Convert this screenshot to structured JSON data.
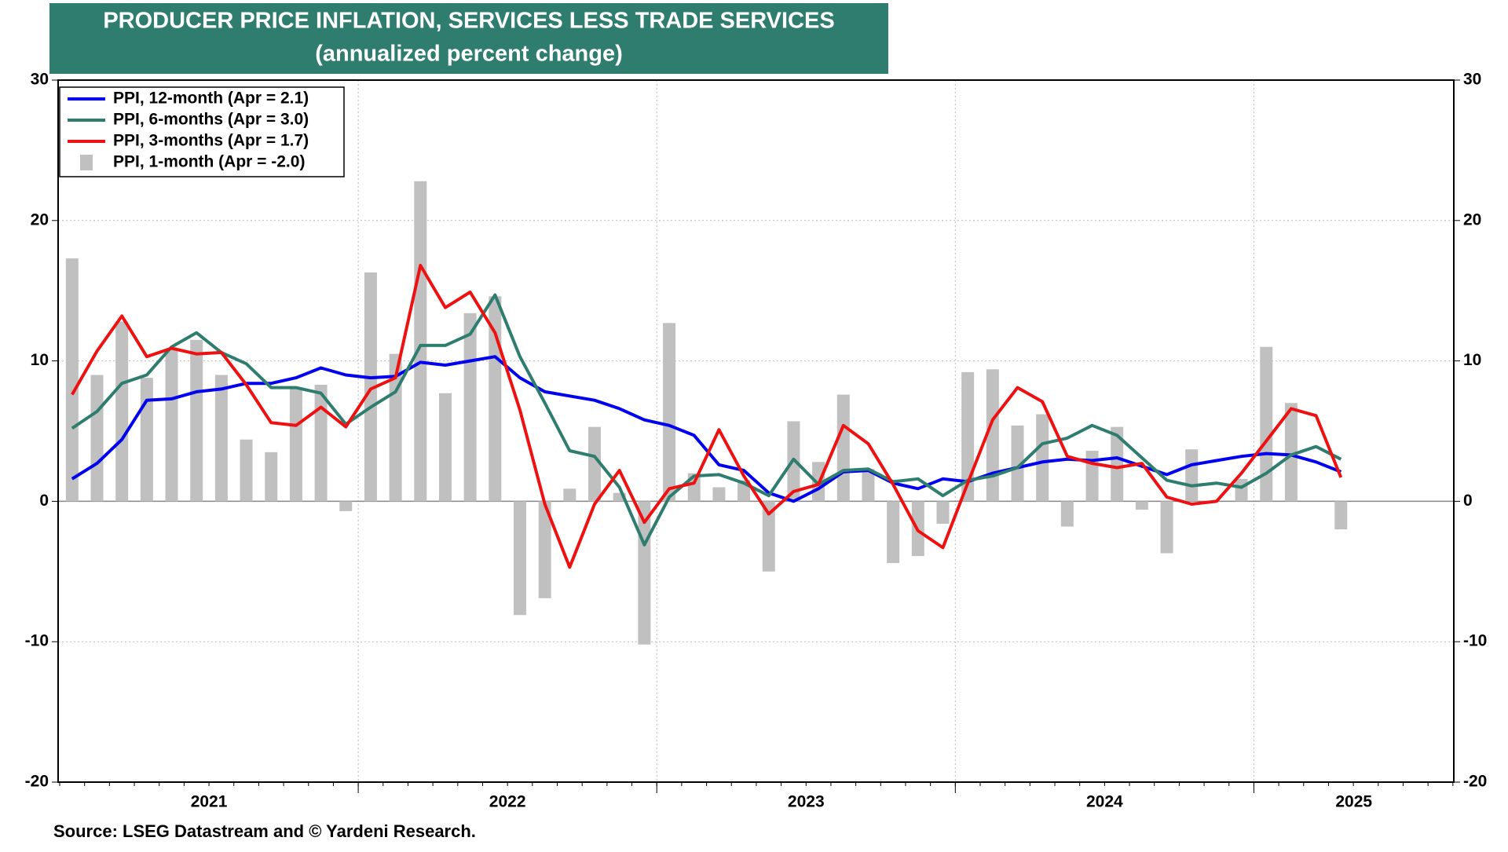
{
  "chart_data": {
    "type": "line",
    "title": "PRODUCER PRICE INFLATION, SERVICES LESS TRADE SERVICES",
    "subtitle": "(annualized percent change)",
    "source": "Source: LSEG Datastream and © Yardeni Research.",
    "categories": [
      null,
      null,
      null,
      null,
      null,
      null,
      null,
      null,
      null,
      null,
      null,
      null,
      null,
      null,
      null,
      null,
      null,
      null,
      null,
      null,
      null,
      null,
      null,
      null,
      null,
      null,
      null,
      null,
      null,
      null,
      null,
      null,
      null,
      null,
      null,
      null,
      null,
      null,
      null,
      null,
      null,
      null,
      null,
      null,
      null,
      null,
      null,
      null,
      null,
      null,
      null,
      null
    ],
    "year_labels": [
      "2021",
      "2022",
      "2023",
      "2024",
      "2025"
    ],
    "ylim": [
      -20,
      30
    ],
    "yticks": [
      -20,
      -10,
      0,
      10,
      20,
      30
    ],
    "grid": true,
    "legend": "upper left",
    "series": [
      {
        "name": "PPI, 12-month (Apr = 2.1)",
        "type": "line",
        "color": "#0000ee",
        "values": [
          1.6,
          2.7,
          4.4,
          7.2,
          7.3,
          7.8,
          8.0,
          8.4,
          8.4,
          8.8,
          9.5,
          9.0,
          8.8,
          8.9,
          9.9,
          9.7,
          10.0,
          10.3,
          8.8,
          7.8,
          7.5,
          7.2,
          6.6,
          5.8,
          5.4,
          4.7,
          2.6,
          2.2,
          0.6,
          0.0,
          0.9,
          2.1,
          2.2,
          1.3,
          0.9,
          1.6,
          1.4,
          2.0,
          2.4,
          2.8,
          3.0,
          2.9,
          3.1,
          2.5,
          1.9,
          2.6,
          2.9,
          3.2,
          3.4,
          3.3,
          2.8,
          2.1
        ]
      },
      {
        "name": "PPI, 6-months (Apr = 3.0)",
        "type": "line",
        "color": "#2e7d6e",
        "values": [
          5.2,
          6.4,
          8.4,
          9.0,
          11.0,
          12.0,
          10.6,
          9.8,
          8.1,
          8.1,
          7.7,
          5.5,
          6.7,
          7.8,
          11.1,
          11.1,
          11.9,
          14.7,
          10.3,
          7.0,
          3.6,
          3.2,
          1.0,
          -3.1,
          0.3,
          1.8,
          1.9,
          1.3,
          0.4,
          3.0,
          1.2,
          2.2,
          2.3,
          1.4,
          1.6,
          0.4,
          1.5,
          1.8,
          2.4,
          4.1,
          4.5,
          5.4,
          4.7,
          3.1,
          1.5,
          1.1,
          1.3,
          1.0,
          2.0,
          3.3,
          3.9,
          3.0
        ]
      },
      {
        "name": "PPI, 3-months (Apr = 1.7)",
        "type": "line",
        "color": "#ee1111",
        "values": [
          7.6,
          10.7,
          13.2,
          10.3,
          10.9,
          10.5,
          10.6,
          8.3,
          5.6,
          5.4,
          6.7,
          5.3,
          8.0,
          8.8,
          16.8,
          13.8,
          14.9,
          12.0,
          6.5,
          -0.2,
          -4.7,
          -0.2,
          2.2,
          -1.5,
          0.9,
          1.3,
          5.1,
          1.8,
          -0.9,
          0.7,
          1.2,
          5.4,
          4.1,
          1.2,
          -2.1,
          -3.3,
          1.3,
          5.8,
          8.1,
          7.1,
          3.2,
          2.7,
          2.4,
          2.7,
          0.3,
          -0.2,
          0.0,
          2.0,
          4.3,
          6.6,
          6.1,
          1.7
        ]
      },
      {
        "name": "PPI, 1-month (Apr = -2.0)",
        "type": "bar",
        "color": "#c0c0c0",
        "values": [
          17.3,
          9.0,
          12.8,
          8.8,
          10.8,
          11.5,
          9.0,
          4.4,
          3.5,
          8.0,
          8.3,
          -0.7,
          16.3,
          10.5,
          22.8,
          7.7,
          13.4,
          14.6,
          -8.1,
          -6.9,
          0.9,
          5.3,
          0.6,
          -10.2,
          12.7,
          2.0,
          1.0,
          1.5,
          -5.0,
          5.7,
          2.8,
          7.6,
          2.3,
          -4.4,
          -3.9,
          -1.6,
          9.2,
          9.4,
          5.4,
          6.2,
          -1.8,
          3.6,
          5.3,
          -0.6,
          -3.7,
          3.7,
          0.0,
          1.6,
          11.0,
          7.0,
          0.0,
          -2.0
        ]
      }
    ]
  }
}
